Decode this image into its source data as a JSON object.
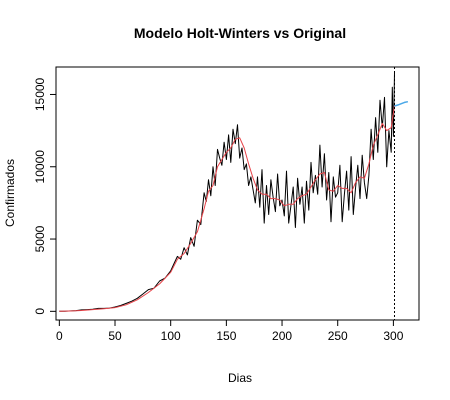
{
  "chart_data": {
    "type": "line",
    "title": "Modelo Holt-Winters vs Original",
    "xlabel": "Dias",
    "ylabel": "Confirmados",
    "xlim": [
      -3,
      323
    ],
    "ylim": [
      -600,
      16900
    ],
    "xticks": [
      0,
      50,
      100,
      150,
      200,
      250,
      300
    ],
    "yticks": [
      0,
      5000,
      10000,
      15000
    ],
    "grid": false,
    "legend": "none",
    "vline": {
      "x": 301,
      "style": "dotted"
    },
    "series": [
      {
        "role": "original",
        "color": "#000000",
        "x": [
          0,
          5,
          10,
          15,
          20,
          25,
          30,
          35,
          40,
          45,
          50,
          55,
          60,
          65,
          70,
          75,
          80,
          85,
          90,
          95,
          100,
          103,
          106,
          109,
          112,
          115,
          118,
          121,
          124,
          127,
          130,
          132,
          134,
          136,
          138,
          140,
          142,
          144,
          146,
          148,
          150,
          152,
          154,
          156,
          158,
          160,
          162,
          164,
          166,
          168,
          170,
          172,
          174,
          176,
          178,
          180,
          182,
          184,
          186,
          188,
          190,
          192,
          194,
          196,
          198,
          200,
          202,
          204,
          206,
          208,
          210,
          212,
          214,
          216,
          218,
          220,
          222,
          224,
          226,
          228,
          230,
          232,
          234,
          236,
          238,
          240,
          242,
          244,
          246,
          248,
          250,
          252,
          254,
          256,
          258,
          260,
          262,
          264,
          266,
          268,
          270,
          272,
          274,
          276,
          278,
          280,
          282,
          284,
          286,
          288,
          290,
          292,
          294,
          296,
          298,
          299,
          300,
          301
        ],
        "values": [
          0,
          10,
          30,
          50,
          100,
          120,
          150,
          200,
          200,
          220,
          300,
          400,
          550,
          700,
          900,
          1200,
          1500,
          1600,
          2100,
          2300,
          2800,
          3300,
          3800,
          3600,
          4400,
          3900,
          5100,
          4500,
          6300,
          6000,
          8200,
          7600,
          9100,
          8000,
          10000,
          8700,
          11200,
          10600,
          10100,
          11700,
          10500,
          12200,
          10300,
          12600,
          11600,
          12900,
          10600,
          11300,
          9800,
          10200,
          8700,
          9300,
          8400,
          7500,
          9300,
          7200,
          9800,
          6100,
          8700,
          6700,
          9100,
          7900,
          6900,
          9500,
          7300,
          7700,
          6600,
          9700,
          6100,
          7300,
          8600,
          5800,
          9200,
          7400,
          8600,
          6100,
          9000,
          7000,
          10300,
          8200,
          9400,
          8100,
          11500,
          8600,
          10900,
          7700,
          9600,
          6200,
          9300,
          7900,
          8200,
          10100,
          6200,
          8100,
          9700,
          7000,
          10700,
          6700,
          8500,
          10100,
          7800,
          10800,
          8900,
          7800,
          9400,
          12600,
          10500,
          13400,
          11000,
          14600,
          12700,
          14800,
          10000,
          12500,
          11000,
          15500,
          12100,
          16500
        ]
      },
      {
        "role": "fitted",
        "color": "#e8444a",
        "x": [
          0,
          10,
          20,
          30,
          40,
          50,
          60,
          70,
          80,
          90,
          100,
          106,
          112,
          118,
          124,
          130,
          134,
          138,
          142,
          146,
          150,
          154,
          158,
          162,
          166,
          170,
          174,
          178,
          182,
          186,
          190,
          194,
          198,
          202,
          206,
          210,
          214,
          218,
          222,
          226,
          230,
          234,
          238,
          242,
          246,
          250,
          254,
          258,
          262,
          266,
          270,
          274,
          278,
          282,
          286,
          290,
          294,
          298,
          301
        ],
        "values": [
          0,
          20,
          60,
          120,
          180,
          260,
          450,
          800,
          1300,
          1900,
          2700,
          3600,
          4000,
          4700,
          5500,
          7100,
          8300,
          8700,
          10000,
          10500,
          11000,
          11300,
          11900,
          12000,
          11300,
          10200,
          9200,
          8400,
          8100,
          8100,
          7800,
          7800,
          7700,
          7300,
          7400,
          7400,
          7800,
          8000,
          8100,
          8600,
          9100,
          9500,
          9600,
          8400,
          8300,
          8700,
          8500,
          8500,
          8200,
          8900,
          9300,
          9200,
          10200,
          11500,
          12200,
          13000,
          12500,
          12700,
          14200
        ]
      },
      {
        "role": "forecast",
        "color": "#4aa8e8",
        "x": [
          301,
          305,
          310,
          313
        ],
        "values": [
          14200,
          14300,
          14450,
          14500
        ]
      }
    ]
  }
}
